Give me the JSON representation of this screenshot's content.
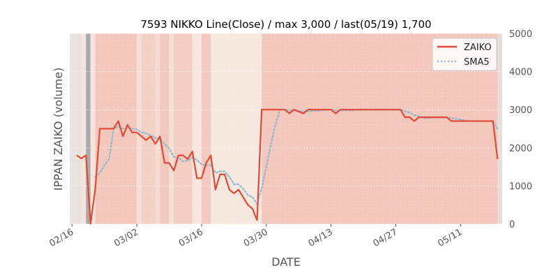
{
  "chart_data": {
    "type": "line",
    "title": "7593 NIKKO Line(Close) / max 3,000 / last(05/19) 1,700",
    "xlabel": "DATE",
    "ylabel": "IPPAN ZAIKO (volume)",
    "ylim": [
      0,
      5000
    ],
    "y_ticks": [
      "0",
      "1000",
      "2000",
      "3000",
      "4000",
      "5000"
    ],
    "y_axis_position": "right",
    "grid": true,
    "legend_position": "top-right",
    "x_ticks": [
      {
        "label": "02/16",
        "date": "2021-02-16"
      },
      {
        "label": "03/02",
        "date": "2021-03-02"
      },
      {
        "label": "03/16",
        "date": "2021-03-16"
      },
      {
        "label": "03/30",
        "date": "2021-03-30"
      },
      {
        "label": "04/13",
        "date": "2021-04-13"
      },
      {
        "label": "04/27",
        "date": "2021-04-27"
      },
      {
        "label": "05/11",
        "date": "2021-05-11"
      }
    ],
    "series": [
      {
        "name": "ZAIKO",
        "color": "#e24a33",
        "style": "solid",
        "points": [
          [
            "2021-02-17",
            1800
          ],
          [
            "2021-02-18",
            1720
          ],
          [
            "2021-02-19",
            1800
          ],
          [
            "2021-02-20",
            0
          ],
          [
            "2021-02-21",
            900
          ],
          [
            "2021-02-22",
            2500
          ],
          [
            "2021-02-23",
            2500
          ],
          [
            "2021-02-24",
            2500
          ],
          [
            "2021-02-25",
            2500
          ],
          [
            "2021-02-26",
            2700
          ],
          [
            "2021-02-27",
            2300
          ],
          [
            "2021-02-28",
            2600
          ],
          [
            "2021-03-01",
            2400
          ],
          [
            "2021-03-02",
            2400
          ],
          [
            "2021-03-03",
            2300
          ],
          [
            "2021-03-04",
            2200
          ],
          [
            "2021-03-05",
            2300
          ],
          [
            "2021-03-06",
            2100
          ],
          [
            "2021-03-07",
            2300
          ],
          [
            "2021-03-08",
            1600
          ],
          [
            "2021-03-09",
            1600
          ],
          [
            "2021-03-10",
            1400
          ],
          [
            "2021-03-11",
            1800
          ],
          [
            "2021-03-12",
            1800
          ],
          [
            "2021-03-13",
            1700
          ],
          [
            "2021-03-14",
            1900
          ],
          [
            "2021-03-15",
            1200
          ],
          [
            "2021-03-16",
            1200
          ],
          [
            "2021-03-17",
            1600
          ],
          [
            "2021-03-18",
            1800
          ],
          [
            "2021-03-19",
            900
          ],
          [
            "2021-03-20",
            1300
          ],
          [
            "2021-03-21",
            1300
          ],
          [
            "2021-03-22",
            900
          ],
          [
            "2021-03-23",
            800
          ],
          [
            "2021-03-24",
            900
          ],
          [
            "2021-03-25",
            700
          ],
          [
            "2021-03-26",
            500
          ],
          [
            "2021-03-27",
            400
          ],
          [
            "2021-03-28",
            100
          ],
          [
            "2021-03-29",
            3000
          ],
          [
            "2021-03-30",
            3000
          ],
          [
            "2021-03-31",
            3000
          ],
          [
            "2021-04-01",
            3000
          ],
          [
            "2021-04-02",
            3000
          ],
          [
            "2021-04-03",
            3000
          ],
          [
            "2021-04-04",
            2900
          ],
          [
            "2021-04-05",
            3000
          ],
          [
            "2021-04-06",
            2950
          ],
          [
            "2021-04-07",
            2900
          ],
          [
            "2021-04-08",
            3000
          ],
          [
            "2021-04-09",
            3000
          ],
          [
            "2021-04-10",
            3000
          ],
          [
            "2021-04-11",
            3000
          ],
          [
            "2021-04-12",
            3000
          ],
          [
            "2021-04-13",
            3000
          ],
          [
            "2021-04-14",
            2900
          ],
          [
            "2021-04-15",
            3000
          ],
          [
            "2021-04-16",
            3000
          ],
          [
            "2021-04-17",
            3000
          ],
          [
            "2021-04-18",
            3000
          ],
          [
            "2021-04-19",
            3000
          ],
          [
            "2021-04-20",
            3000
          ],
          [
            "2021-04-21",
            3000
          ],
          [
            "2021-04-22",
            3000
          ],
          [
            "2021-04-23",
            3000
          ],
          [
            "2021-04-24",
            3000
          ],
          [
            "2021-04-25",
            3000
          ],
          [
            "2021-04-26",
            3000
          ],
          [
            "2021-04-27",
            3000
          ],
          [
            "2021-04-28",
            3000
          ],
          [
            "2021-04-29",
            2800
          ],
          [
            "2021-04-30",
            2800
          ],
          [
            "2021-05-01",
            2700
          ],
          [
            "2021-05-02",
            2800
          ],
          [
            "2021-05-03",
            2800
          ],
          [
            "2021-05-04",
            2800
          ],
          [
            "2021-05-05",
            2800
          ],
          [
            "2021-05-06",
            2800
          ],
          [
            "2021-05-07",
            2800
          ],
          [
            "2021-05-08",
            2800
          ],
          [
            "2021-05-09",
            2700
          ],
          [
            "2021-05-10",
            2700
          ],
          [
            "2021-05-11",
            2700
          ],
          [
            "2021-05-12",
            2700
          ],
          [
            "2021-05-13",
            2700
          ],
          [
            "2021-05-14",
            2700
          ],
          [
            "2021-05-15",
            2700
          ],
          [
            "2021-05-16",
            2700
          ],
          [
            "2021-05-17",
            2700
          ],
          [
            "2021-05-18",
            2700
          ],
          [
            "2021-05-19",
            1700
          ]
        ]
      },
      {
        "name": "SMA5",
        "color": "#8eb8d0",
        "style": "dotted",
        "points": [
          [
            "2021-02-21",
            1240
          ],
          [
            "2021-02-22",
            1340
          ],
          [
            "2021-02-23",
            1540
          ],
          [
            "2021-02-24",
            1700
          ],
          [
            "2021-02-25",
            2500
          ],
          [
            "2021-02-26",
            2560
          ],
          [
            "2021-02-27",
            2500
          ],
          [
            "2021-02-28",
            2520
          ],
          [
            "2021-03-01",
            2500
          ],
          [
            "2021-03-02",
            2480
          ],
          [
            "2021-03-03",
            2400
          ],
          [
            "2021-03-04",
            2380
          ],
          [
            "2021-03-05",
            2320
          ],
          [
            "2021-03-06",
            2260
          ],
          [
            "2021-03-07",
            2240
          ],
          [
            "2021-03-08",
            2100
          ],
          [
            "2021-03-09",
            1980
          ],
          [
            "2021-03-10",
            1760
          ],
          [
            "2021-03-11",
            1740
          ],
          [
            "2021-03-12",
            1640
          ],
          [
            "2021-03-13",
            1660
          ],
          [
            "2021-03-14",
            1740
          ],
          [
            "2021-03-15",
            1680
          ],
          [
            "2021-03-16",
            1560
          ],
          [
            "2021-03-17",
            1540
          ],
          [
            "2021-03-18",
            1540
          ],
          [
            "2021-03-19",
            1340
          ],
          [
            "2021-03-20",
            1380
          ],
          [
            "2021-03-21",
            1380
          ],
          [
            "2021-03-22",
            1240
          ],
          [
            "2021-03-23",
            1040
          ],
          [
            "2021-03-24",
            1040
          ],
          [
            "2021-03-25",
            920
          ],
          [
            "2021-03-26",
            760
          ],
          [
            "2021-03-27",
            700
          ],
          [
            "2021-03-28",
            520
          ],
          [
            "2021-03-29",
            940
          ],
          [
            "2021-03-30",
            1500
          ],
          [
            "2021-03-31",
            2100
          ],
          [
            "2021-04-01",
            2620
          ],
          [
            "2021-04-02",
            3000
          ],
          [
            "2021-04-03",
            3000
          ],
          [
            "2021-04-04",
            2980
          ],
          [
            "2021-04-05",
            2980
          ],
          [
            "2021-04-06",
            2970
          ],
          [
            "2021-04-07",
            2950
          ],
          [
            "2021-04-08",
            2950
          ],
          [
            "2021-04-09",
            2970
          ],
          [
            "2021-04-10",
            2970
          ],
          [
            "2021-04-11",
            2980
          ],
          [
            "2021-04-12",
            3000
          ],
          [
            "2021-04-13",
            3000
          ],
          [
            "2021-04-14",
            2980
          ],
          [
            "2021-04-15",
            2980
          ],
          [
            "2021-04-16",
            2980
          ],
          [
            "2021-04-17",
            2980
          ],
          [
            "2021-04-18",
            2980
          ],
          [
            "2021-04-19",
            3000
          ],
          [
            "2021-04-20",
            3000
          ],
          [
            "2021-04-21",
            3000
          ],
          [
            "2021-04-22",
            3000
          ],
          [
            "2021-04-23",
            3000
          ],
          [
            "2021-04-24",
            3000
          ],
          [
            "2021-04-25",
            3000
          ],
          [
            "2021-04-26",
            3000
          ],
          [
            "2021-04-27",
            3000
          ],
          [
            "2021-04-28",
            3000
          ],
          [
            "2021-04-29",
            2960
          ],
          [
            "2021-04-30",
            2920
          ],
          [
            "2021-05-01",
            2860
          ],
          [
            "2021-05-02",
            2820
          ],
          [
            "2021-05-03",
            2780
          ],
          [
            "2021-05-04",
            2780
          ],
          [
            "2021-05-05",
            2800
          ],
          [
            "2021-05-06",
            2800
          ],
          [
            "2021-05-07",
            2800
          ],
          [
            "2021-05-08",
            2800
          ],
          [
            "2021-05-09",
            2780
          ],
          [
            "2021-05-10",
            2760
          ],
          [
            "2021-05-11",
            2740
          ],
          [
            "2021-05-12",
            2720
          ],
          [
            "2021-05-13",
            2700
          ],
          [
            "2021-05-14",
            2700
          ],
          [
            "2021-05-15",
            2700
          ],
          [
            "2021-05-16",
            2700
          ],
          [
            "2021-05-17",
            2700
          ],
          [
            "2021-05-18",
            2700
          ],
          [
            "2021-05-19",
            2500
          ]
        ]
      }
    ],
    "background_bands": [
      {
        "from": "2021-02-16",
        "to": "2021-02-18",
        "color": "#e9e3df"
      },
      {
        "from": "2021-02-18",
        "to": "2021-02-19",
        "color": "#f4e4dc"
      },
      {
        "from": "2021-02-19",
        "to": "2021-02-20",
        "color": "#aaaaaa"
      },
      {
        "from": "2021-02-20",
        "to": "2021-02-21",
        "color": "#f7e3da"
      },
      {
        "from": "2021-02-21",
        "to": "2021-03-02",
        "color": "#f4c7bd"
      },
      {
        "from": "2021-03-02",
        "to": "2021-03-03",
        "color": "#f6ddd3"
      },
      {
        "from": "2021-03-03",
        "to": "2021-03-06",
        "color": "#f3cfc4"
      },
      {
        "from": "2021-03-06",
        "to": "2021-03-07",
        "color": "#f5dcd2"
      },
      {
        "from": "2021-03-07",
        "to": "2021-03-09",
        "color": "#f3c8be"
      },
      {
        "from": "2021-03-09",
        "to": "2021-03-10",
        "color": "#f6e0d6"
      },
      {
        "from": "2021-03-10",
        "to": "2021-03-14",
        "color": "#f4cdc3"
      },
      {
        "from": "2021-03-14",
        "to": "2021-03-16",
        "color": "#f7e6de"
      },
      {
        "from": "2021-03-16",
        "to": "2021-03-18",
        "color": "#f4c9bf"
      },
      {
        "from": "2021-03-18",
        "to": "2021-03-29",
        "color": "#f6e7df"
      },
      {
        "from": "2021-03-29",
        "to": "2021-05-19",
        "color": "#f4c7bd"
      },
      {
        "from": "2021-05-19",
        "to": "2021-05-20",
        "color": "#e6e0dd"
      }
    ]
  }
}
